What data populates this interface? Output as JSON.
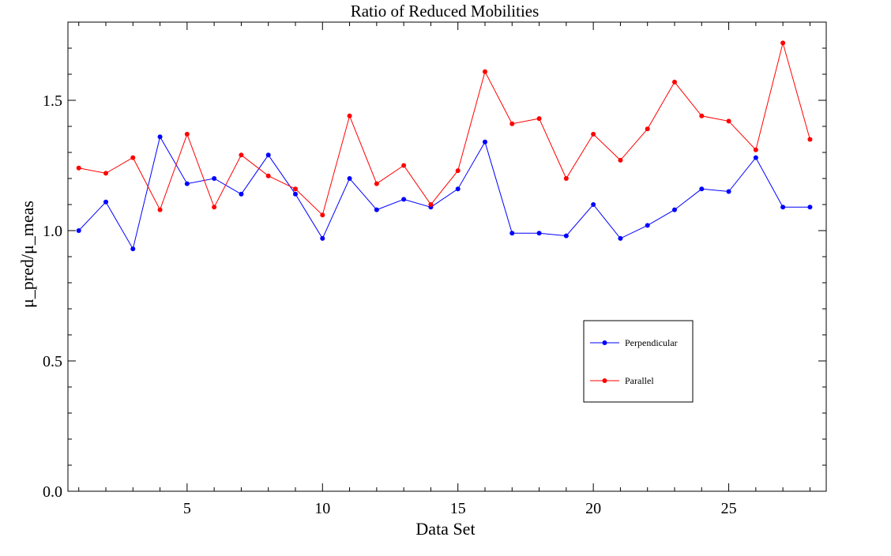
{
  "chart_data": {
    "type": "line",
    "title": "Ratio of Reduced Mobilities",
    "xlabel": "Data Set",
    "ylabel": "μ_pred/μ_meas",
    "xlim": [
      0.6,
      28.6
    ],
    "ylim": [
      0.0,
      1.8
    ],
    "x_major_ticks": [
      5,
      10,
      15,
      20,
      25
    ],
    "x_tick_labels": [
      "5",
      "10",
      "15",
      "20",
      "25"
    ],
    "y_major_ticks": [
      0.0,
      0.5,
      1.0,
      1.5
    ],
    "y_tick_labels": [
      "0.0",
      "0.5",
      "1.0",
      "1.5"
    ],
    "grid": false,
    "legend_position": "lower-right",
    "x": [
      1,
      2,
      3,
      4,
      5,
      6,
      7,
      8,
      9,
      10,
      11,
      12,
      13,
      14,
      15,
      16,
      17,
      18,
      19,
      20,
      21,
      22,
      23,
      24,
      25,
      26,
      27,
      28
    ],
    "series": [
      {
        "name": "Perpendicular",
        "color": "#0000ff",
        "values": [
          1.0,
          1.11,
          0.93,
          1.36,
          1.18,
          1.2,
          1.14,
          1.29,
          1.14,
          0.97,
          1.2,
          1.08,
          1.12,
          1.09,
          1.16,
          1.34,
          0.99,
          0.99,
          0.98,
          1.1,
          0.97,
          1.02,
          1.08,
          1.16,
          1.15,
          1.28,
          1.09,
          1.09
        ]
      },
      {
        "name": "Parallel",
        "color": "#ff0000",
        "values": [
          1.24,
          1.22,
          1.28,
          1.08,
          1.37,
          1.09,
          1.29,
          1.21,
          1.16,
          1.06,
          1.44,
          1.18,
          1.25,
          1.1,
          1.23,
          1.61,
          1.41,
          1.43,
          1.2,
          1.37,
          1.27,
          1.39,
          1.57,
          1.44,
          1.42,
          1.31,
          1.72,
          1.35
        ]
      }
    ]
  }
}
